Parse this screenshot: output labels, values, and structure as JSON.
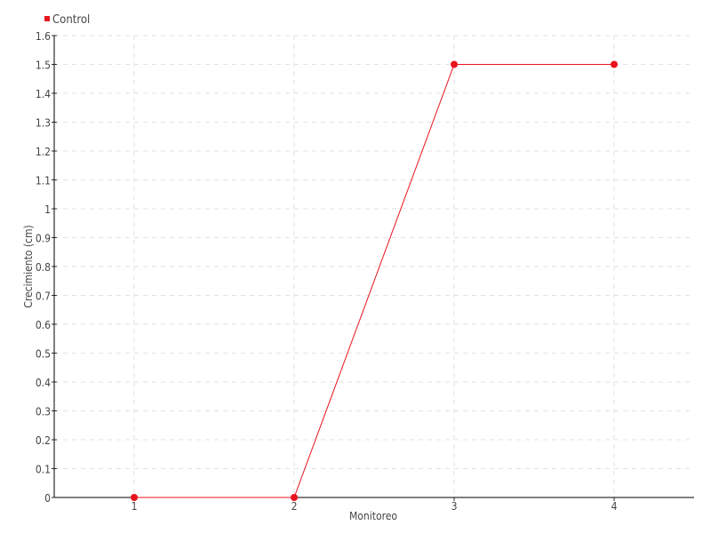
{
  "chart_data": {
    "type": "line",
    "title": "",
    "xlabel": "Monitoreo",
    "ylabel": "Crecimiento (cm)",
    "categories": [
      "1",
      "2",
      "3",
      "4"
    ],
    "series": [
      {
        "name": "Control",
        "values": [
          0,
          0,
          1.5,
          1.5
        ],
        "color": "#e8141e"
      }
    ],
    "ylim": [
      0,
      1.6
    ],
    "yticks": [
      "0",
      "0.1",
      "0.2",
      "0.3",
      "0.4",
      "0.5",
      "0.6",
      "0.7",
      "0.8",
      "0.9",
      "1",
      "1.1",
      "1.2",
      "1.3",
      "1.4",
      "1.5",
      "1.6"
    ],
    "grid": true,
    "legend_position": "top-left"
  }
}
